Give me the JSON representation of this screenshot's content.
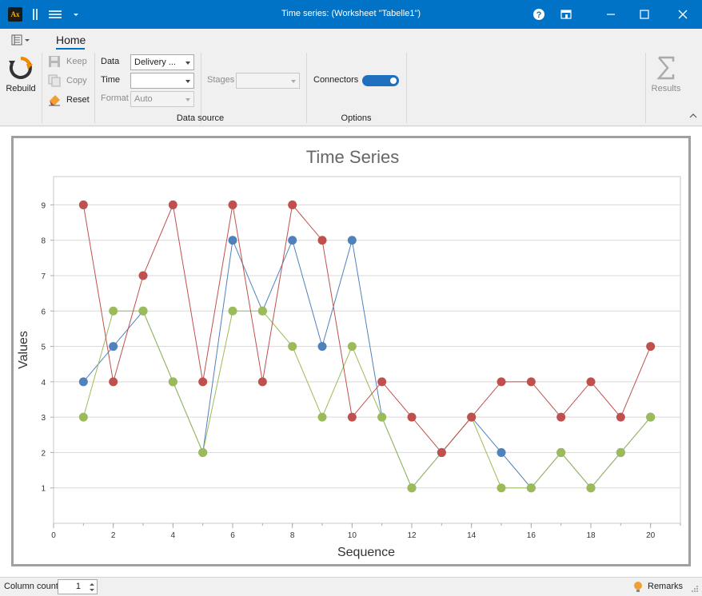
{
  "window": {
    "title": "Time series:  (Worksheet \"Tabelle1\")",
    "app_icon_text": "Ax"
  },
  "ribbon": {
    "tab_home": "Home",
    "rebuild_label": "Rebuild",
    "keep_label": "Keep",
    "copy_label": "Copy",
    "reset_label": "Reset",
    "data_label": "Data",
    "data_value": "Delivery ...",
    "time_label": "Time",
    "time_value": "",
    "format_label": "Format",
    "format_value": "Auto",
    "stages_label": "Stages",
    "stages_value": "",
    "group_data_source": "Data source",
    "connectors_label": "Connectors",
    "connectors_on": true,
    "group_options": "Options",
    "results_label": "Results"
  },
  "status": {
    "column_count_label": "Column count",
    "column_count_value": "1",
    "remarks_label": "Remarks"
  },
  "colors": {
    "titlebar": "#0173c7",
    "series_blue": "#4f81bd",
    "series_red": "#c0504d",
    "series_green": "#9bbb59"
  },
  "chart_data": {
    "type": "line",
    "title": "Time Series",
    "xlabel": "Sequence",
    "ylabel": "Values",
    "xlim": [
      0,
      21
    ],
    "ylim": [
      0,
      9.8
    ],
    "xticks": [
      0,
      2,
      4,
      6,
      8,
      10,
      12,
      14,
      16,
      18,
      20
    ],
    "yticks": [
      1,
      2,
      3,
      4,
      5,
      6,
      7,
      8,
      9
    ],
    "grid": true,
    "x": [
      1,
      2,
      3,
      4,
      5,
      6,
      7,
      8,
      9,
      10,
      11,
      12,
      13,
      14,
      15,
      16,
      17,
      18,
      19,
      20
    ],
    "series": [
      {
        "color": "#4f81bd",
        "values": [
          4,
          5,
          6,
          4,
          2,
          8,
          6,
          8,
          5,
          8,
          3,
          1,
          2,
          3,
          2,
          1,
          2,
          1,
          2,
          3
        ]
      },
      {
        "color": "#9bbb59",
        "values": [
          3,
          6,
          6,
          4,
          2,
          6,
          6,
          5,
          3,
          5,
          3,
          1,
          2,
          3,
          1,
          1,
          2,
          1,
          2,
          3
        ]
      },
      {
        "color": "#c0504d",
        "values": [
          9,
          4,
          7,
          9,
          4,
          9,
          4,
          9,
          8,
          3,
          4,
          3,
          2,
          3,
          4,
          4,
          3,
          4,
          3,
          5
        ]
      }
    ]
  }
}
